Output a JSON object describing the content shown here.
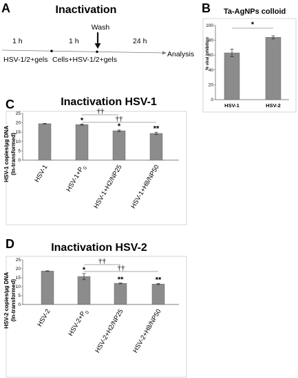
{
  "panels": {
    "A": {
      "label": "A",
      "title": "Inactivation",
      "durations": [
        "1 h",
        "1 h",
        "24 h"
      ],
      "wash": "Wash",
      "steps": [
        "HSV-1/2+gels",
        "Cells+HSV-1/2+gels",
        "Analysis"
      ]
    }
  },
  "chart_data": [
    {
      "panel": "B",
      "label": "B",
      "type": "bar",
      "title": "Ta-AgNPs colloid",
      "ylabel": "% viral inhibition",
      "categories": [
        "HSV-1",
        "HSV-2"
      ],
      "values": [
        63,
        84
      ],
      "errors": [
        5,
        2
      ],
      "ylim": [
        0,
        100
      ],
      "yticks": [
        0,
        20,
        40,
        60,
        80,
        100
      ],
      "annotations": [
        {
          "type": "bracket",
          "from": 0,
          "to": 1,
          "text": "*"
        }
      ],
      "color": "#8c8c8c"
    },
    {
      "panel": "C",
      "label": "C",
      "type": "bar",
      "title": "Inactivation HSV-1",
      "ylabel": "HSV-1 copies/µg DNA",
      "ylabel2": "(ln-transformed)",
      "categories": [
        "HSV-1",
        "HSV-1+P",
        "HSV-1+H2/NP25",
        "HSV-1+H8/NP50"
      ],
      "category_subscripts": [
        "",
        "0",
        "",
        ""
      ],
      "values": [
        19.5,
        19.0,
        15.7,
        14.3
      ],
      "errors": [
        0.15,
        0.3,
        0.5,
        0.6
      ],
      "marks": [
        "",
        "*",
        "*",
        "**"
      ],
      "ylim": [
        0,
        25
      ],
      "yticks": [
        0,
        5,
        10,
        15,
        20,
        25
      ],
      "brackets": [
        {
          "from": 1,
          "to": 2,
          "text": "††"
        },
        {
          "from": 1,
          "to": 3,
          "text": "††"
        }
      ],
      "color": "#8c8c8c"
    },
    {
      "panel": "D",
      "label": "D",
      "type": "bar",
      "title": "Inactivation HSV-2",
      "ylabel": "HSV-2 copies/µg DNA",
      "ylabel2": "(ln-transformed)",
      "categories": [
        "HSV-2",
        "HSV-2+P",
        "HSV-2+H2/NP25",
        "HSV-2+H8/NP50"
      ],
      "category_subscripts": [
        "",
        "0",
        "",
        ""
      ],
      "values": [
        18.7,
        15.6,
        11.8,
        11.4
      ],
      "errors": [
        0.15,
        1.7,
        0.2,
        0.3
      ],
      "marks": [
        "",
        "*",
        "**",
        "**"
      ],
      "ylim": [
        0,
        25
      ],
      "yticks": [
        0,
        5,
        10,
        15,
        20,
        25
      ],
      "brackets": [
        {
          "from": 1,
          "to": 2,
          "text": "††"
        },
        {
          "from": 1,
          "to": 3,
          "text": "††"
        }
      ],
      "color": "#8c8c8c"
    }
  ]
}
